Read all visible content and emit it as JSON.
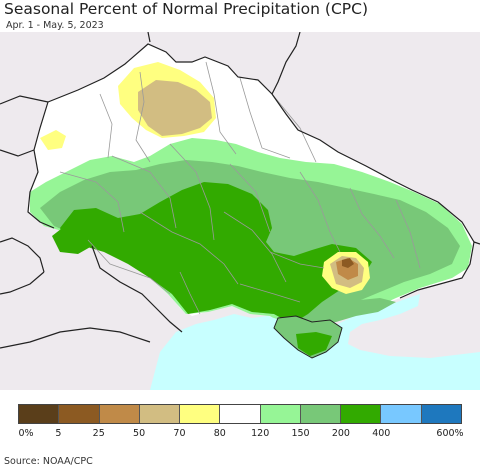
{
  "title": "Seasonal Percent of Normal Precipitation (CPC)",
  "subtitle": "Apr. 1 - May. 5, 2023",
  "source": "Source: NOAA/CPC",
  "colors": {
    "sea": "#c8ffff",
    "outside": "#eeeaee",
    "border_country": "#222222",
    "border_admin": "#9a9a9a"
  },
  "legend": {
    "colors": [
      "#5a3e1a",
      "#8c5a22",
      "#c08a48",
      "#d2bd82",
      "#ffff80",
      "#ffffff",
      "#96f596",
      "#78c878",
      "#32aa00",
      "#78c8ff",
      "#1e78be"
    ],
    "labels": [
      "0%",
      "5",
      "25",
      "50",
      "70",
      "80",
      "120",
      "150",
      "200",
      "400",
      "600%"
    ]
  }
}
